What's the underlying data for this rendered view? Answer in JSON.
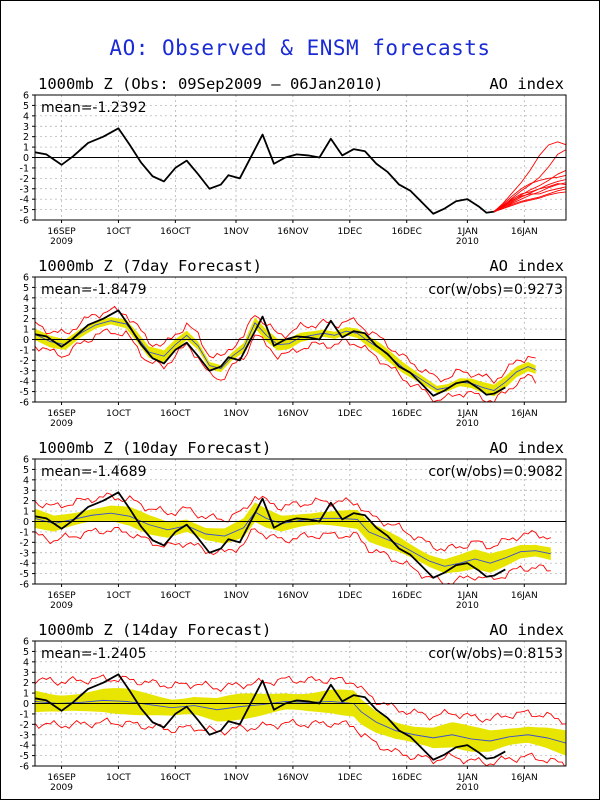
{
  "main_title": "AO: Observed & ENSM forecasts",
  "colors": {
    "title": "#1a2bd6",
    "observed": "#000000",
    "spread_fill": "#e8e600",
    "envelope": "#ff0000",
    "ensemble_mean": "#3a4fd0",
    "grid": "#aaaaaa"
  },
  "chart_data": [
    {
      "type": "line",
      "name": "observed",
      "title": "1000mb Z (Obs: 09Sep2009 – 06Jan2010)",
      "index_label": "AO index",
      "mean_label": "mean=-1.2392",
      "cor_label": "",
      "ylim": [
        -6,
        6
      ],
      "yticks": [
        -6,
        -5,
        -4,
        -3,
        -2,
        -1,
        0,
        1,
        2,
        3,
        4,
        5,
        6
      ],
      "xlim": [
        0,
        140
      ],
      "xtick_days": [
        7,
        22,
        37,
        53,
        68,
        83,
        98,
        114,
        129
      ],
      "xtick_labels": [
        "16SEP\n2009",
        "1OCT",
        "16OCT",
        "1NOV",
        "16NOV",
        "1DEC",
        "16DEC",
        "1JAN\n2010",
        "16JAN"
      ],
      "observed": [
        [
          0,
          0.5
        ],
        [
          3,
          0.3
        ],
        [
          7,
          -0.7
        ],
        [
          10,
          0.1
        ],
        [
          14,
          1.4
        ],
        [
          18,
          2.0
        ],
        [
          22,
          2.8
        ],
        [
          25,
          1.2
        ],
        [
          28,
          -0.5
        ],
        [
          31,
          -1.8
        ],
        [
          34,
          -2.3
        ],
        [
          37,
          -1.0
        ],
        [
          40,
          -0.3
        ],
        [
          43,
          -1.6
        ],
        [
          46,
          -3.0
        ],
        [
          49,
          -2.6
        ],
        [
          51,
          -1.7
        ],
        [
          54,
          -2.0
        ],
        [
          57,
          0.1
        ],
        [
          60,
          2.2
        ],
        [
          63,
          -0.6
        ],
        [
          66,
          0.0
        ],
        [
          69,
          0.3
        ],
        [
          72,
          0.2
        ],
        [
          75,
          0.0
        ],
        [
          78,
          1.8
        ],
        [
          81,
          0.2
        ],
        [
          84,
          0.8
        ],
        [
          87,
          0.6
        ],
        [
          90,
          -0.6
        ],
        [
          93,
          -1.4
        ],
        [
          96,
          -2.6
        ],
        [
          99,
          -3.2
        ],
        [
          102,
          -4.3
        ],
        [
          105,
          -5.4
        ],
        [
          108,
          -4.9
        ],
        [
          111,
          -4.2
        ],
        [
          114,
          -4.0
        ],
        [
          117,
          -4.7
        ],
        [
          119,
          -5.3
        ],
        [
          121,
          -5.2
        ],
        [
          124,
          -4.6
        ]
      ],
      "ensemble": [
        {
          "start": 121,
          "values": [
            -5.2,
            -4.4,
            -3.4,
            -2.4,
            -1.2,
            0.2,
            1.2,
            1.5,
            1.2
          ]
        },
        {
          "start": 121,
          "values": [
            -5.2,
            -4.6,
            -3.9,
            -3.2,
            -2.6,
            -1.9,
            -0.9,
            0.3,
            0.8
          ]
        },
        {
          "start": 121,
          "values": [
            -5.2,
            -4.7,
            -4.2,
            -3.6,
            -3.1,
            -2.7,
            -2.2,
            -1.6,
            -1.2
          ]
        },
        {
          "start": 121,
          "values": [
            -5.2,
            -4.8,
            -4.4,
            -4.0,
            -3.6,
            -3.3,
            -2.9,
            -2.6,
            -2.4
          ]
        },
        {
          "start": 121,
          "values": [
            -5.2,
            -4.9,
            -4.5,
            -4.2,
            -4.0,
            -3.8,
            -3.5,
            -3.2,
            -3.0
          ]
        },
        {
          "start": 121,
          "values": [
            -5.2,
            -4.7,
            -4.0,
            -3.5,
            -3.3,
            -3.0,
            -2.6,
            -2.3,
            -2.1
          ]
        },
        {
          "start": 121,
          "values": [
            -5.2,
            -4.8,
            -4.3,
            -3.8,
            -3.4,
            -3.0,
            -2.8,
            -2.5,
            -2.6
          ]
        },
        {
          "start": 121,
          "values": [
            -5.2,
            -4.6,
            -4.1,
            -3.7,
            -3.5,
            -3.5,
            -3.2,
            -3.0,
            -2.8
          ]
        },
        {
          "start": 121,
          "values": [
            -5.2,
            -4.9,
            -4.6,
            -4.3,
            -4.1,
            -3.9,
            -3.6,
            -3.4,
            -3.3
          ]
        },
        {
          "start": 121,
          "values": [
            -5.2,
            -4.5,
            -3.7,
            -3.0,
            -2.5,
            -2.2,
            -2.0,
            -1.9,
            -1.7
          ]
        }
      ]
    },
    {
      "type": "line",
      "name": "forecast-7day",
      "title": "1000mb Z (7day Forecast)",
      "index_label": "AO index",
      "mean_label": "mean=-1.8479",
      "cor_label": "cor(w/obs)=0.9273",
      "ylim": [
        -6,
        6
      ],
      "yticks": [
        -6,
        -5,
        -4,
        -3,
        -2,
        -1,
        0,
        1,
        2,
        3,
        4,
        5,
        6
      ],
      "xlim": [
        0,
        140
      ],
      "xtick_days": [
        7,
        22,
        37,
        53,
        68,
        83,
        98,
        114,
        129
      ],
      "xtick_labels": [
        "16SEP\n2009",
        "1OCT",
        "16OCT",
        "1NOV",
        "16NOV",
        "1DEC",
        "16DEC",
        "1JAN\n2010",
        "16JAN"
      ],
      "spread": 0.45,
      "envelope_width": 1.0,
      "observed": [
        [
          0,
          0.5
        ],
        [
          3,
          0.3
        ],
        [
          7,
          -0.7
        ],
        [
          10,
          0.1
        ],
        [
          14,
          1.4
        ],
        [
          18,
          2.0
        ],
        [
          22,
          2.8
        ],
        [
          25,
          1.2
        ],
        [
          28,
          -0.5
        ],
        [
          31,
          -1.8
        ],
        [
          34,
          -2.3
        ],
        [
          37,
          -1.0
        ],
        [
          40,
          -0.3
        ],
        [
          43,
          -1.6
        ],
        [
          46,
          -3.0
        ],
        [
          49,
          -2.6
        ],
        [
          51,
          -1.7
        ],
        [
          54,
          -2.0
        ],
        [
          57,
          0.1
        ],
        [
          60,
          2.2
        ],
        [
          63,
          -0.6
        ],
        [
          66,
          0.0
        ],
        [
          69,
          0.3
        ],
        [
          72,
          0.2
        ],
        [
          75,
          0.0
        ],
        [
          78,
          1.8
        ],
        [
          81,
          0.2
        ],
        [
          84,
          0.8
        ],
        [
          87,
          0.6
        ],
        [
          90,
          -0.6
        ],
        [
          93,
          -1.4
        ],
        [
          96,
          -2.6
        ],
        [
          99,
          -3.2
        ],
        [
          102,
          -4.3
        ],
        [
          105,
          -5.4
        ],
        [
          108,
          -4.9
        ],
        [
          111,
          -4.2
        ],
        [
          114,
          -4.0
        ],
        [
          117,
          -4.7
        ],
        [
          119,
          -5.3
        ],
        [
          121,
          -5.2
        ],
        [
          124,
          -4.6
        ]
      ],
      "ensemble_mean": [
        [
          0,
          0.5
        ],
        [
          4,
          -0.2
        ],
        [
          8,
          -0.5
        ],
        [
          12,
          0.6
        ],
        [
          16,
          1.4
        ],
        [
          20,
          1.8
        ],
        [
          24,
          1.5
        ],
        [
          27,
          0.2
        ],
        [
          30,
          -1.2
        ],
        [
          34,
          -1.6
        ],
        [
          37,
          -0.5
        ],
        [
          40,
          0.4
        ],
        [
          43,
          -0.6
        ],
        [
          46,
          -2.5
        ],
        [
          49,
          -2.8
        ],
        [
          52,
          -1.6
        ],
        [
          55,
          -0.8
        ],
        [
          58,
          1.6
        ],
        [
          61,
          0.4
        ],
        [
          64,
          -0.5
        ],
        [
          67,
          -0.4
        ],
        [
          70,
          0.2
        ],
        [
          73,
          0.4
        ],
        [
          76,
          0.6
        ],
        [
          79,
          0.4
        ],
        [
          82,
          0.8
        ],
        [
          85,
          0.6
        ],
        [
          88,
          -0.2
        ],
        [
          91,
          -0.9
        ],
        [
          94,
          -1.8
        ],
        [
          97,
          -2.7
        ],
        [
          100,
          -3.4
        ],
        [
          103,
          -4.1
        ],
        [
          106,
          -4.8
        ],
        [
          109,
          -4.6
        ],
        [
          112,
          -4.1
        ],
        [
          115,
          -4.2
        ],
        [
          118,
          -4.6
        ],
        [
          121,
          -4.9
        ],
        [
          124,
          -4.1
        ],
        [
          127,
          -3.1
        ],
        [
          130,
          -2.6
        ],
        [
          132,
          -2.9
        ]
      ]
    },
    {
      "type": "line",
      "name": "forecast-10day",
      "title": "1000mb Z (10day Forecast)",
      "index_label": "AO index",
      "mean_label": "mean=-1.4689",
      "cor_label": "cor(w/obs)=0.9082",
      "ylim": [
        -6,
        6
      ],
      "yticks": [
        -6,
        -5,
        -4,
        -3,
        -2,
        -1,
        0,
        1,
        2,
        3,
        4,
        5,
        6
      ],
      "xlim": [
        0,
        140
      ],
      "xtick_days": [
        7,
        22,
        37,
        53,
        68,
        83,
        98,
        114,
        129
      ],
      "xtick_labels": [
        "16SEP\n2009",
        "1OCT",
        "16OCT",
        "1NOV",
        "16NOV",
        "1DEC",
        "16DEC",
        "1JAN\n2010",
        "16JAN"
      ],
      "spread": 0.75,
      "envelope_width": 1.6,
      "observed": [
        [
          0,
          0.5
        ],
        [
          3,
          0.3
        ],
        [
          7,
          -0.7
        ],
        [
          10,
          0.1
        ],
        [
          14,
          1.4
        ],
        [
          18,
          2.0
        ],
        [
          22,
          2.8
        ],
        [
          25,
          1.2
        ],
        [
          28,
          -0.5
        ],
        [
          31,
          -1.8
        ],
        [
          34,
          -2.3
        ],
        [
          37,
          -1.0
        ],
        [
          40,
          -0.3
        ],
        [
          43,
          -1.6
        ],
        [
          46,
          -3.0
        ],
        [
          49,
          -2.6
        ],
        [
          51,
          -1.7
        ],
        [
          54,
          -2.0
        ],
        [
          57,
          0.1
        ],
        [
          60,
          2.2
        ],
        [
          63,
          -0.6
        ],
        [
          66,
          0.0
        ],
        [
          69,
          0.3
        ],
        [
          72,
          0.2
        ],
        [
          75,
          0.0
        ],
        [
          78,
          1.8
        ],
        [
          81,
          0.2
        ],
        [
          84,
          0.8
        ],
        [
          87,
          0.6
        ],
        [
          90,
          -0.6
        ],
        [
          93,
          -1.4
        ],
        [
          96,
          -2.6
        ],
        [
          99,
          -3.2
        ],
        [
          102,
          -4.3
        ],
        [
          105,
          -5.4
        ],
        [
          108,
          -4.9
        ],
        [
          111,
          -4.2
        ],
        [
          114,
          -4.0
        ],
        [
          117,
          -4.7
        ],
        [
          119,
          -5.3
        ],
        [
          121,
          -5.2
        ],
        [
          124,
          -4.6
        ]
      ],
      "ensemble_mean": [
        [
          0,
          0.3
        ],
        [
          5,
          -0.2
        ],
        [
          10,
          0.2
        ],
        [
          15,
          0.6
        ],
        [
          20,
          0.8
        ],
        [
          25,
          0.5
        ],
        [
          30,
          -0.3
        ],
        [
          35,
          -0.8
        ],
        [
          40,
          -0.4
        ],
        [
          45,
          -1.2
        ],
        [
          50,
          -1.4
        ],
        [
          55,
          -0.6
        ],
        [
          58,
          0.9
        ],
        [
          61,
          0.3
        ],
        [
          65,
          -0.2
        ],
        [
          70,
          0.1
        ],
        [
          75,
          0.3
        ],
        [
          80,
          0.3
        ],
        [
          85,
          0.2
        ],
        [
          88,
          -1.0
        ],
        [
          92,
          -1.6
        ],
        [
          96,
          -2.2
        ],
        [
          100,
          -3.0
        ],
        [
          104,
          -3.8
        ],
        [
          108,
          -4.3
        ],
        [
          112,
          -4.0
        ],
        [
          116,
          -3.6
        ],
        [
          120,
          -4.0
        ],
        [
          124,
          -3.5
        ],
        [
          128,
          -2.9
        ],
        [
          132,
          -2.8
        ],
        [
          136,
          -3.1
        ]
      ]
    },
    {
      "type": "line",
      "name": "forecast-14day",
      "title": "1000mb Z (14day Forecast)",
      "index_label": "AO index",
      "mean_label": "mean=-1.2405",
      "cor_label": "cor(w/obs)=0.8153",
      "ylim": [
        -6,
        6
      ],
      "yticks": [
        -6,
        -5,
        -4,
        -3,
        -2,
        -1,
        0,
        1,
        2,
        3,
        4,
        5,
        6
      ],
      "xlim": [
        0,
        140
      ],
      "xtick_days": [
        7,
        22,
        37,
        53,
        68,
        83,
        98,
        114,
        129
      ],
      "xtick_labels": [
        "16SEP\n2009",
        "1OCT",
        "16OCT",
        "1NOV",
        "16NOV",
        "1DEC",
        "16DEC",
        "1JAN\n2010",
        "16JAN"
      ],
      "spread": 1.0,
      "envelope_width": 2.1,
      "observed": [
        [
          0,
          0.5
        ],
        [
          3,
          0.3
        ],
        [
          7,
          -0.7
        ],
        [
          10,
          0.1
        ],
        [
          14,
          1.4
        ],
        [
          18,
          2.0
        ],
        [
          22,
          2.8
        ],
        [
          25,
          1.2
        ],
        [
          28,
          -0.5
        ],
        [
          31,
          -1.8
        ],
        [
          34,
          -2.3
        ],
        [
          37,
          -1.0
        ],
        [
          40,
          -0.3
        ],
        [
          43,
          -1.6
        ],
        [
          46,
          -3.0
        ],
        [
          49,
          -2.6
        ],
        [
          51,
          -1.7
        ],
        [
          54,
          -2.0
        ],
        [
          57,
          0.1
        ],
        [
          60,
          2.2
        ],
        [
          63,
          -0.6
        ],
        [
          66,
          0.0
        ],
        [
          69,
          0.3
        ],
        [
          72,
          0.2
        ],
        [
          75,
          0.0
        ],
        [
          78,
          1.8
        ],
        [
          81,
          0.2
        ],
        [
          84,
          0.8
        ],
        [
          87,
          0.6
        ],
        [
          90,
          -0.6
        ],
        [
          93,
          -1.4
        ],
        [
          96,
          -2.6
        ],
        [
          99,
          -3.2
        ],
        [
          102,
          -4.3
        ],
        [
          105,
          -5.4
        ],
        [
          108,
          -4.9
        ],
        [
          111,
          -4.2
        ],
        [
          114,
          -4.0
        ],
        [
          117,
          -4.7
        ],
        [
          119,
          -5.3
        ],
        [
          121,
          -5.2
        ],
        [
          124,
          -4.6
        ]
      ],
      "ensemble_mean": [
        [
          0,
          0.2
        ],
        [
          6,
          0.0
        ],
        [
          12,
          0.1
        ],
        [
          18,
          0.3
        ],
        [
          24,
          0.2
        ],
        [
          30,
          -0.1
        ],
        [
          36,
          -0.4
        ],
        [
          42,
          -0.2
        ],
        [
          48,
          -0.6
        ],
        [
          54,
          -0.3
        ],
        [
          60,
          -0.1
        ],
        [
          66,
          0.2
        ],
        [
          72,
          0.1
        ],
        [
          78,
          0.2
        ],
        [
          84,
          0.0
        ],
        [
          86,
          -0.8
        ],
        [
          90,
          -1.8
        ],
        [
          95,
          -2.6
        ],
        [
          100,
          -3.0
        ],
        [
          105,
          -3.3
        ],
        [
          110,
          -3.0
        ],
        [
          115,
          -3.4
        ],
        [
          120,
          -3.6
        ],
        [
          125,
          -3.2
        ],
        [
          130,
          -3.0
        ],
        [
          135,
          -3.3
        ],
        [
          140,
          -3.8
        ]
      ]
    }
  ]
}
